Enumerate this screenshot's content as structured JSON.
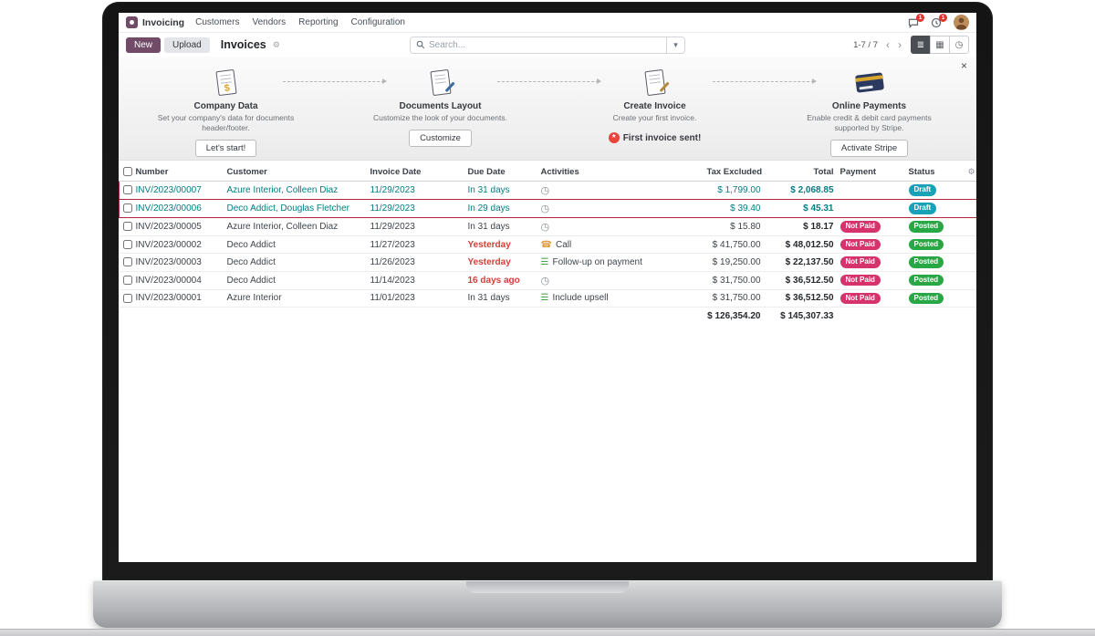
{
  "colors": {
    "accent": "#714B67",
    "link": "#017e84",
    "danger_text": "#d23f3a",
    "badge_draft": "#17a2b8",
    "badge_posted": "#28a745",
    "badge_not_paid": "#d6336c",
    "row_highlight_border": "#b02a37"
  },
  "icons": {
    "gear": "⚙",
    "caret_down": "▾",
    "view_list": "≣",
    "view_kanban": "▦",
    "view_activity": "◷",
    "pager_prev": "‹",
    "pager_next": "›",
    "close": "×",
    "column_options": "⚙",
    "activity_clock": "◷",
    "activity_phone": "☎",
    "activity_list": "☰",
    "done_star": "*"
  },
  "navbar": {
    "app_name": "Invoicing",
    "menus": [
      "Customers",
      "Vendors",
      "Reporting",
      "Configuration"
    ],
    "systray": {
      "messages_badge": "1",
      "activities_badge": "1"
    }
  },
  "control_panel": {
    "new_label": "New",
    "upload_label": "Upload",
    "breadcrumb": "Invoices",
    "search_placeholder": "Search...",
    "pager": "1-7 / 7"
  },
  "onboarding": {
    "steps": [
      {
        "title": "Company Data",
        "description": "Set your company's data for documents header/footer.",
        "button": "Let's start!"
      },
      {
        "title": "Documents Layout",
        "description": "Customize the look of your documents.",
        "button": "Customize"
      },
      {
        "title": "Create Invoice",
        "description": "Create your first invoice.",
        "done_text": "First invoice sent!"
      },
      {
        "title": "Online Payments",
        "description": "Enable credit & debit card payments supported by Stripe.",
        "button": "Activate Stripe"
      }
    ]
  },
  "table": {
    "headers": [
      "Number",
      "Customer",
      "Invoice Date",
      "Due Date",
      "Activities",
      "Tax Excluded",
      "Total",
      "Payment",
      "Status"
    ],
    "rows": [
      {
        "number": "INV/2023/00007",
        "customer": "Azure Interior, Colleen Diaz",
        "invoice_date": "11/29/2023",
        "due_date": "In 31 days",
        "due_overdue": false,
        "activity_icon": "clock",
        "activity_label": "",
        "tax_excluded": "$ 1,799.00",
        "total": "$ 2,068.85",
        "payment": "",
        "status": "Draft",
        "highlighted": true
      },
      {
        "number": "INV/2023/00006",
        "customer": "Deco Addict, Douglas Fletcher",
        "invoice_date": "11/29/2023",
        "due_date": "In 29 days",
        "due_overdue": false,
        "activity_icon": "clock",
        "activity_label": "",
        "tax_excluded": "$ 39.40",
        "total": "$ 45.31",
        "payment": "",
        "status": "Draft",
        "highlighted": true
      },
      {
        "number": "INV/2023/00005",
        "customer": "Azure Interior, Colleen Diaz",
        "invoice_date": "11/29/2023",
        "due_date": "In 31 days",
        "due_overdue": false,
        "activity_icon": "clock",
        "activity_label": "",
        "tax_excluded": "$ 15.80",
        "total": "$ 18.17",
        "payment": "Not Paid",
        "status": "Posted",
        "highlighted": false
      },
      {
        "number": "INV/2023/00002",
        "customer": "Deco Addict",
        "invoice_date": "11/27/2023",
        "due_date": "Yesterday",
        "due_overdue": true,
        "activity_icon": "phone",
        "activity_label": "Call",
        "tax_excluded": "$ 41,750.00",
        "total": "$ 48,012.50",
        "payment": "Not Paid",
        "status": "Posted",
        "highlighted": false
      },
      {
        "number": "INV/2023/00003",
        "customer": "Deco Addict",
        "invoice_date": "11/26/2023",
        "due_date": "Yesterday",
        "due_overdue": true,
        "activity_icon": "list",
        "activity_label": "Follow-up on payment",
        "tax_excluded": "$ 19,250.00",
        "total": "$ 22,137.50",
        "payment": "Not Paid",
        "status": "Posted",
        "highlighted": false
      },
      {
        "number": "INV/2023/00004",
        "customer": "Deco Addict",
        "invoice_date": "11/14/2023",
        "due_date": "16 days ago",
        "due_overdue": true,
        "activity_icon": "clock",
        "activity_label": "",
        "tax_excluded": "$ 31,750.00",
        "total": "$ 36,512.50",
        "payment": "Not Paid",
        "status": "Posted",
        "highlighted": false
      },
      {
        "number": "INV/2023/00001",
        "customer": "Azure Interior",
        "invoice_date": "11/01/2023",
        "due_date": "In 31 days",
        "due_overdue": false,
        "activity_icon": "list",
        "activity_label": "Include upsell",
        "tax_excluded": "$ 31,750.00",
        "total": "$ 36,512.50",
        "payment": "Not Paid",
        "status": "Posted",
        "highlighted": false
      }
    ],
    "totals": {
      "tax_excluded": "$ 126,354.20",
      "total": "$ 145,307.33"
    }
  }
}
